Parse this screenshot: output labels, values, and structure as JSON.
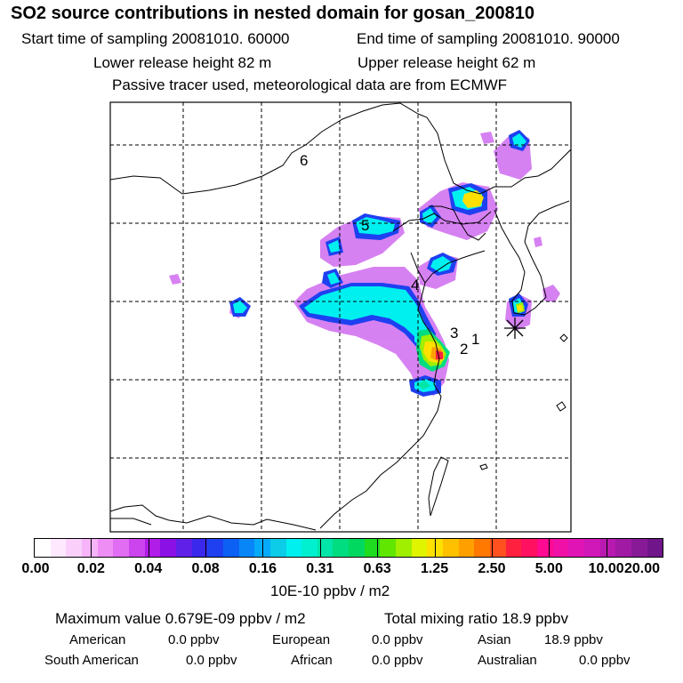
{
  "title": "SO2 source contributions in nested domain for gosan_200810",
  "header": {
    "start_time": "Start time of sampling 20081010. 60000",
    "end_time": "End time of sampling 20081010. 90000",
    "lower_height": "Lower release height   82 m",
    "upper_height": "Upper release height   62 m",
    "tracer_note": "Passive tracer used, meteorological data are from ECMWF"
  },
  "map": {
    "source_labels": [
      "6",
      "5",
      "4",
      "3",
      "2",
      "1"
    ],
    "receptor_marker": "asterisk"
  },
  "colorbar": {
    "colors": [
      "#ffffff",
      "#fde8fd",
      "#fad0fb",
      "#f6b4f9",
      "#ee8ef5",
      "#e16ef2",
      "#cc44ee",
      "#b01ce8",
      "#8a10e6",
      "#6020e8",
      "#3a28ec",
      "#1e40f0",
      "#0c60f4",
      "#0886f8",
      "#06aafa",
      "#0ccce8",
      "#00f0f0",
      "#00f0d0",
      "#00e6a8",
      "#00dc80",
      "#00d860",
      "#20dc20",
      "#60e600",
      "#a0ee00",
      "#e0f400",
      "#ffe000",
      "#ffc000",
      "#ffa000",
      "#ff7800",
      "#ff5020",
      "#ff2040",
      "#ff1060",
      "#ff0a90",
      "#f010a8",
      "#e014b4",
      "#d018b8",
      "#b81ab0",
      "#a01aa4",
      "#881a98",
      "#70168a"
    ],
    "labels": [
      "0.00",
      "0.02",
      "0.04",
      "0.08",
      "0.16",
      "0.31",
      "0.63",
      "1.25",
      "2.50",
      "5.00",
      "10.00",
      "20.00"
    ],
    "unit": "10E-10 ppbv / m2"
  },
  "stats": {
    "max_value": "Maximum value  0.679E-09 ppbv / m2",
    "total_mixing": "Total mixing ratio       18.9 ppbv",
    "regions": [
      {
        "name": "American",
        "value": "0.0 ppbv"
      },
      {
        "name": "European",
        "value": "0.0 ppbv"
      },
      {
        "name": "Asian",
        "value": "18.9 ppbv"
      },
      {
        "name": "South American",
        "value": "0.0 ppbv"
      },
      {
        "name": "African",
        "value": "0.0 ppbv"
      },
      {
        "name": "Australian",
        "value": "0.0 ppbv"
      }
    ]
  }
}
